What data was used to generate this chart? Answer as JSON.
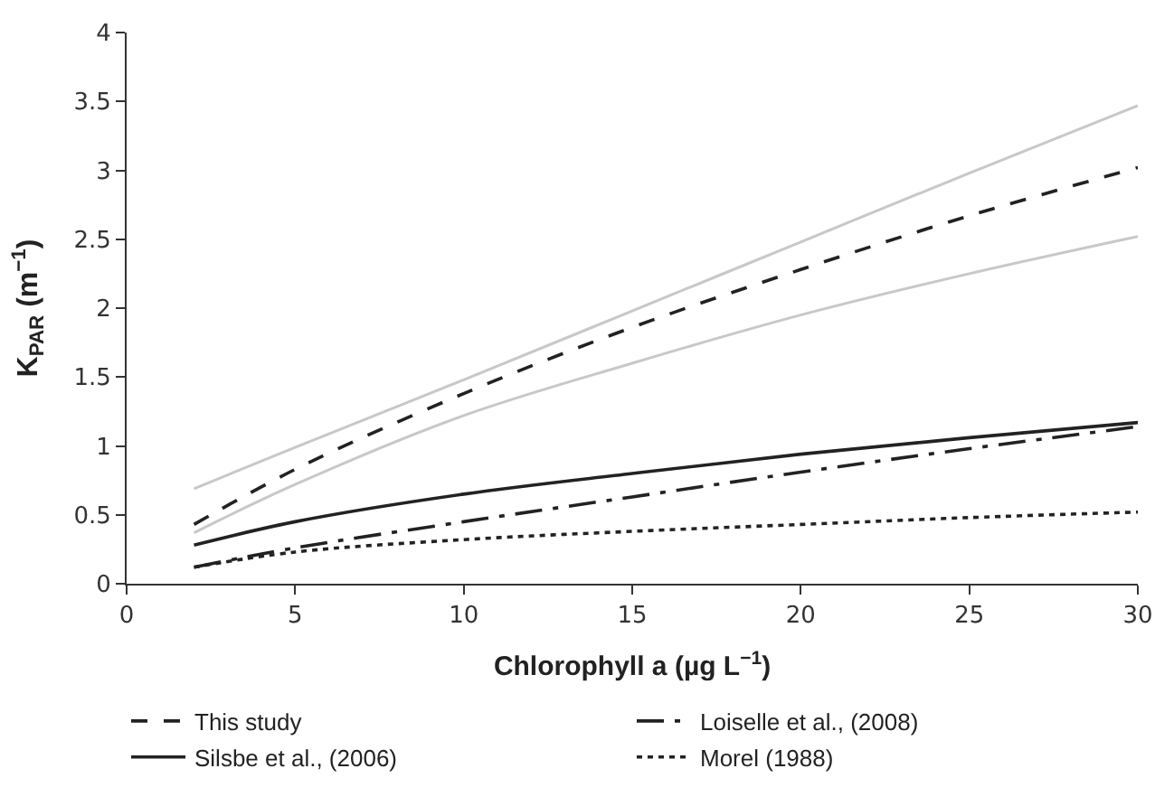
{
  "chart_data": {
    "type": "line",
    "xlabel": "Chlorophyll a (µg L$^{−1}$)",
    "ylabel": "K$_{PAR}$ (m$^{−1}$)",
    "x": [
      2,
      5,
      10,
      15,
      20,
      25,
      30
    ],
    "xlim": [
      0,
      30
    ],
    "xticks": [
      0,
      5,
      10,
      15,
      20,
      25,
      30
    ],
    "ylim": [
      0,
      4
    ],
    "yticks": [
      0,
      0.5,
      1,
      1.5,
      2,
      2.5,
      3,
      3.5,
      4
    ],
    "legend": "bottom",
    "series": [
      {
        "name": "This study",
        "color": "#222222",
        "line_style": "dashed",
        "values": [
          0.43,
          0.83,
          1.38,
          1.86,
          2.28,
          2.67,
          3.02
        ]
      },
      {
        "name": "Loiselle et al., (2008)",
        "color": "#222222",
        "line_style": "dashdot",
        "values": [
          0.12,
          0.26,
          0.45,
          0.63,
          0.81,
          0.98,
          1.14
        ]
      },
      {
        "name": "Silsbe et al., (2006)",
        "color": "#222222",
        "line_style": "solid",
        "values": [
          0.28,
          0.45,
          0.65,
          0.8,
          0.94,
          1.06,
          1.17
        ]
      },
      {
        "name": "Morel (1988)",
        "color": "#222222",
        "line_style": "dotted",
        "values": [
          0.12,
          0.23,
          0.32,
          0.38,
          0.43,
          0.48,
          0.52
        ]
      },
      {
        "color": "#c8c8c8",
        "line_style": "solid",
        "values": [
          0.69,
          0.99,
          1.48,
          1.98,
          2.48,
          2.98,
          3.47
        ]
      },
      {
        "color": "#c8c8c8",
        "line_style": "solid",
        "values": [
          0.37,
          0.72,
          1.22,
          1.6,
          1.95,
          2.25,
          2.52
        ]
      }
    ]
  }
}
